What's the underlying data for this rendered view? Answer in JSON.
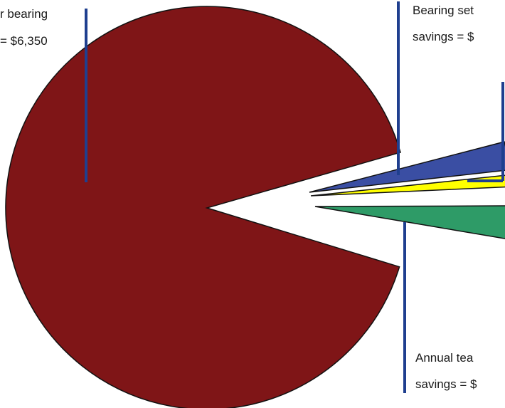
{
  "chart_data": {
    "type": "pie",
    "exploded": true,
    "slices": [
      {
        "lines": [
          "r bearing",
          "= $6,350"
        ],
        "color": "#7f1517"
      },
      {
        "lines": [
          "Bearing set",
          "savings = $"
        ],
        "color": "#3a4ea3"
      },
      {
        "lines": [],
        "color": "#ffff00"
      },
      {
        "lines": [
          "Annual tea",
          "savings = $"
        ],
        "color": "#2e9b67"
      }
    ],
    "leader_color": "#1f3f8f"
  }
}
